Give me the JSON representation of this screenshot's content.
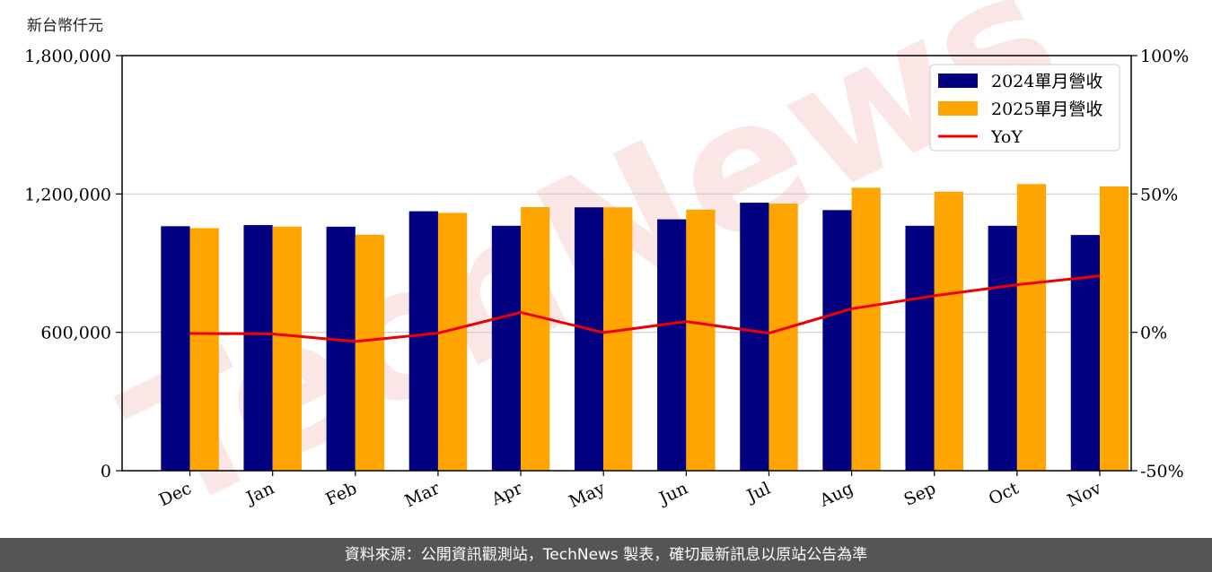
{
  "unit_label": "新台幣仟元",
  "footer_text": "資料來源：公開資訊觀測站，TechNews 製表，確切最新訊息以原站公告為準",
  "watermark_text": "TechNews",
  "colors": {
    "bar_2024": "#000080",
    "bar_2025": "#FFA500",
    "yoy_line": "#EE0000",
    "footer_bg": "#555555",
    "watermark": "#f4b8b8"
  },
  "chart_data": {
    "type": "bar",
    "categories": [
      "Dec",
      "Jan",
      "Feb",
      "Mar",
      "Apr",
      "May",
      "Jun",
      "Jul",
      "Aug",
      "Sep",
      "Oct",
      "Nov"
    ],
    "series": [
      {
        "name": "2024單月營收",
        "type": "bar",
        "axis": "left",
        "values": [
          1060000,
          1065000,
          1058000,
          1125000,
          1062000,
          1142000,
          1090000,
          1162000,
          1130000,
          1062000,
          1062000,
          1022000
        ]
      },
      {
        "name": "2025單月營收",
        "type": "bar",
        "axis": "left",
        "values": [
          1052000,
          1058000,
          1023000,
          1118000,
          1143000,
          1142000,
          1132000,
          1158000,
          1227000,
          1210000,
          1243000,
          1233000
        ]
      },
      {
        "name": "YoY",
        "type": "line",
        "axis": "right",
        "values": [
          -0.4,
          -0.6,
          -3.3,
          -0.3,
          7.2,
          -0.1,
          3.9,
          -0.3,
          8.5,
          13.2,
          17.2,
          20.4
        ]
      }
    ],
    "left_axis": {
      "min": 0,
      "max": 1800000,
      "ticks": [
        0,
        600000,
        1200000,
        1800000
      ],
      "tick_labels": [
        "0",
        "600,000",
        "1,200,000",
        "1,800,000"
      ]
    },
    "right_axis": {
      "min": -50,
      "max": 100,
      "ticks": [
        -50,
        0,
        50,
        100
      ],
      "tick_labels": [
        "-50%",
        "0%",
        "50%",
        "100%"
      ]
    },
    "grid": "horizontal",
    "legend_position": "top-right"
  }
}
